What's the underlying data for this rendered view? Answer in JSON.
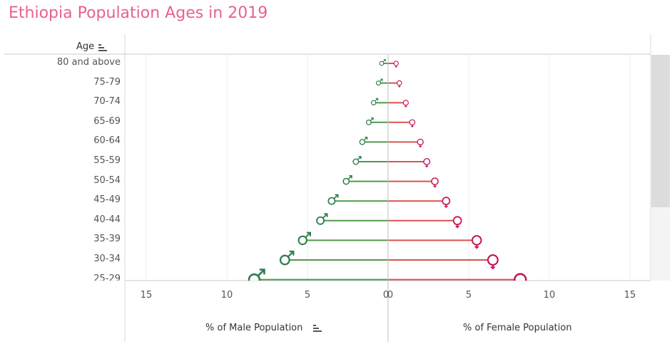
{
  "title": "Ethiopia Population Ages in 2019",
  "row_header": "Age",
  "male_axis_title": "% of Male Population",
  "female_axis_title": "% of Female Population",
  "colors": {
    "male": "#4f9a4a",
    "male_symbol": "#2e7d4f",
    "female": "#d9534f",
    "female_symbol": "#c2185b",
    "title": "#e8628c"
  },
  "chart_data": {
    "type": "bar",
    "categories": [
      "80 and above",
      "75-79",
      "70-74",
      "65-69",
      "60-64",
      "55-59",
      "50-54",
      "45-49",
      "40-44",
      "35-39",
      "30-34",
      "25-29"
    ],
    "series": [
      {
        "name": "Male",
        "values": [
          0.4,
          0.6,
          0.9,
          1.2,
          1.6,
          2.0,
          2.6,
          3.5,
          4.2,
          5.3,
          6.4,
          8.3
        ]
      },
      {
        "name": "Female",
        "values": [
          0.5,
          0.7,
          1.1,
          1.5,
          2.0,
          2.4,
          2.9,
          3.6,
          4.3,
          5.5,
          6.5,
          8.2
        ]
      }
    ],
    "male_axis": {
      "label": "% of Male Population",
      "ticks": [
        "15",
        "10",
        "5",
        "0"
      ],
      "range": [
        0,
        16
      ],
      "reversed": true
    },
    "female_axis": {
      "label": "% of Female Population",
      "ticks": [
        "0",
        "5",
        "10",
        "15"
      ],
      "range": [
        0,
        16
      ]
    },
    "grid": true,
    "marker": "gender symbols at bar ends"
  }
}
